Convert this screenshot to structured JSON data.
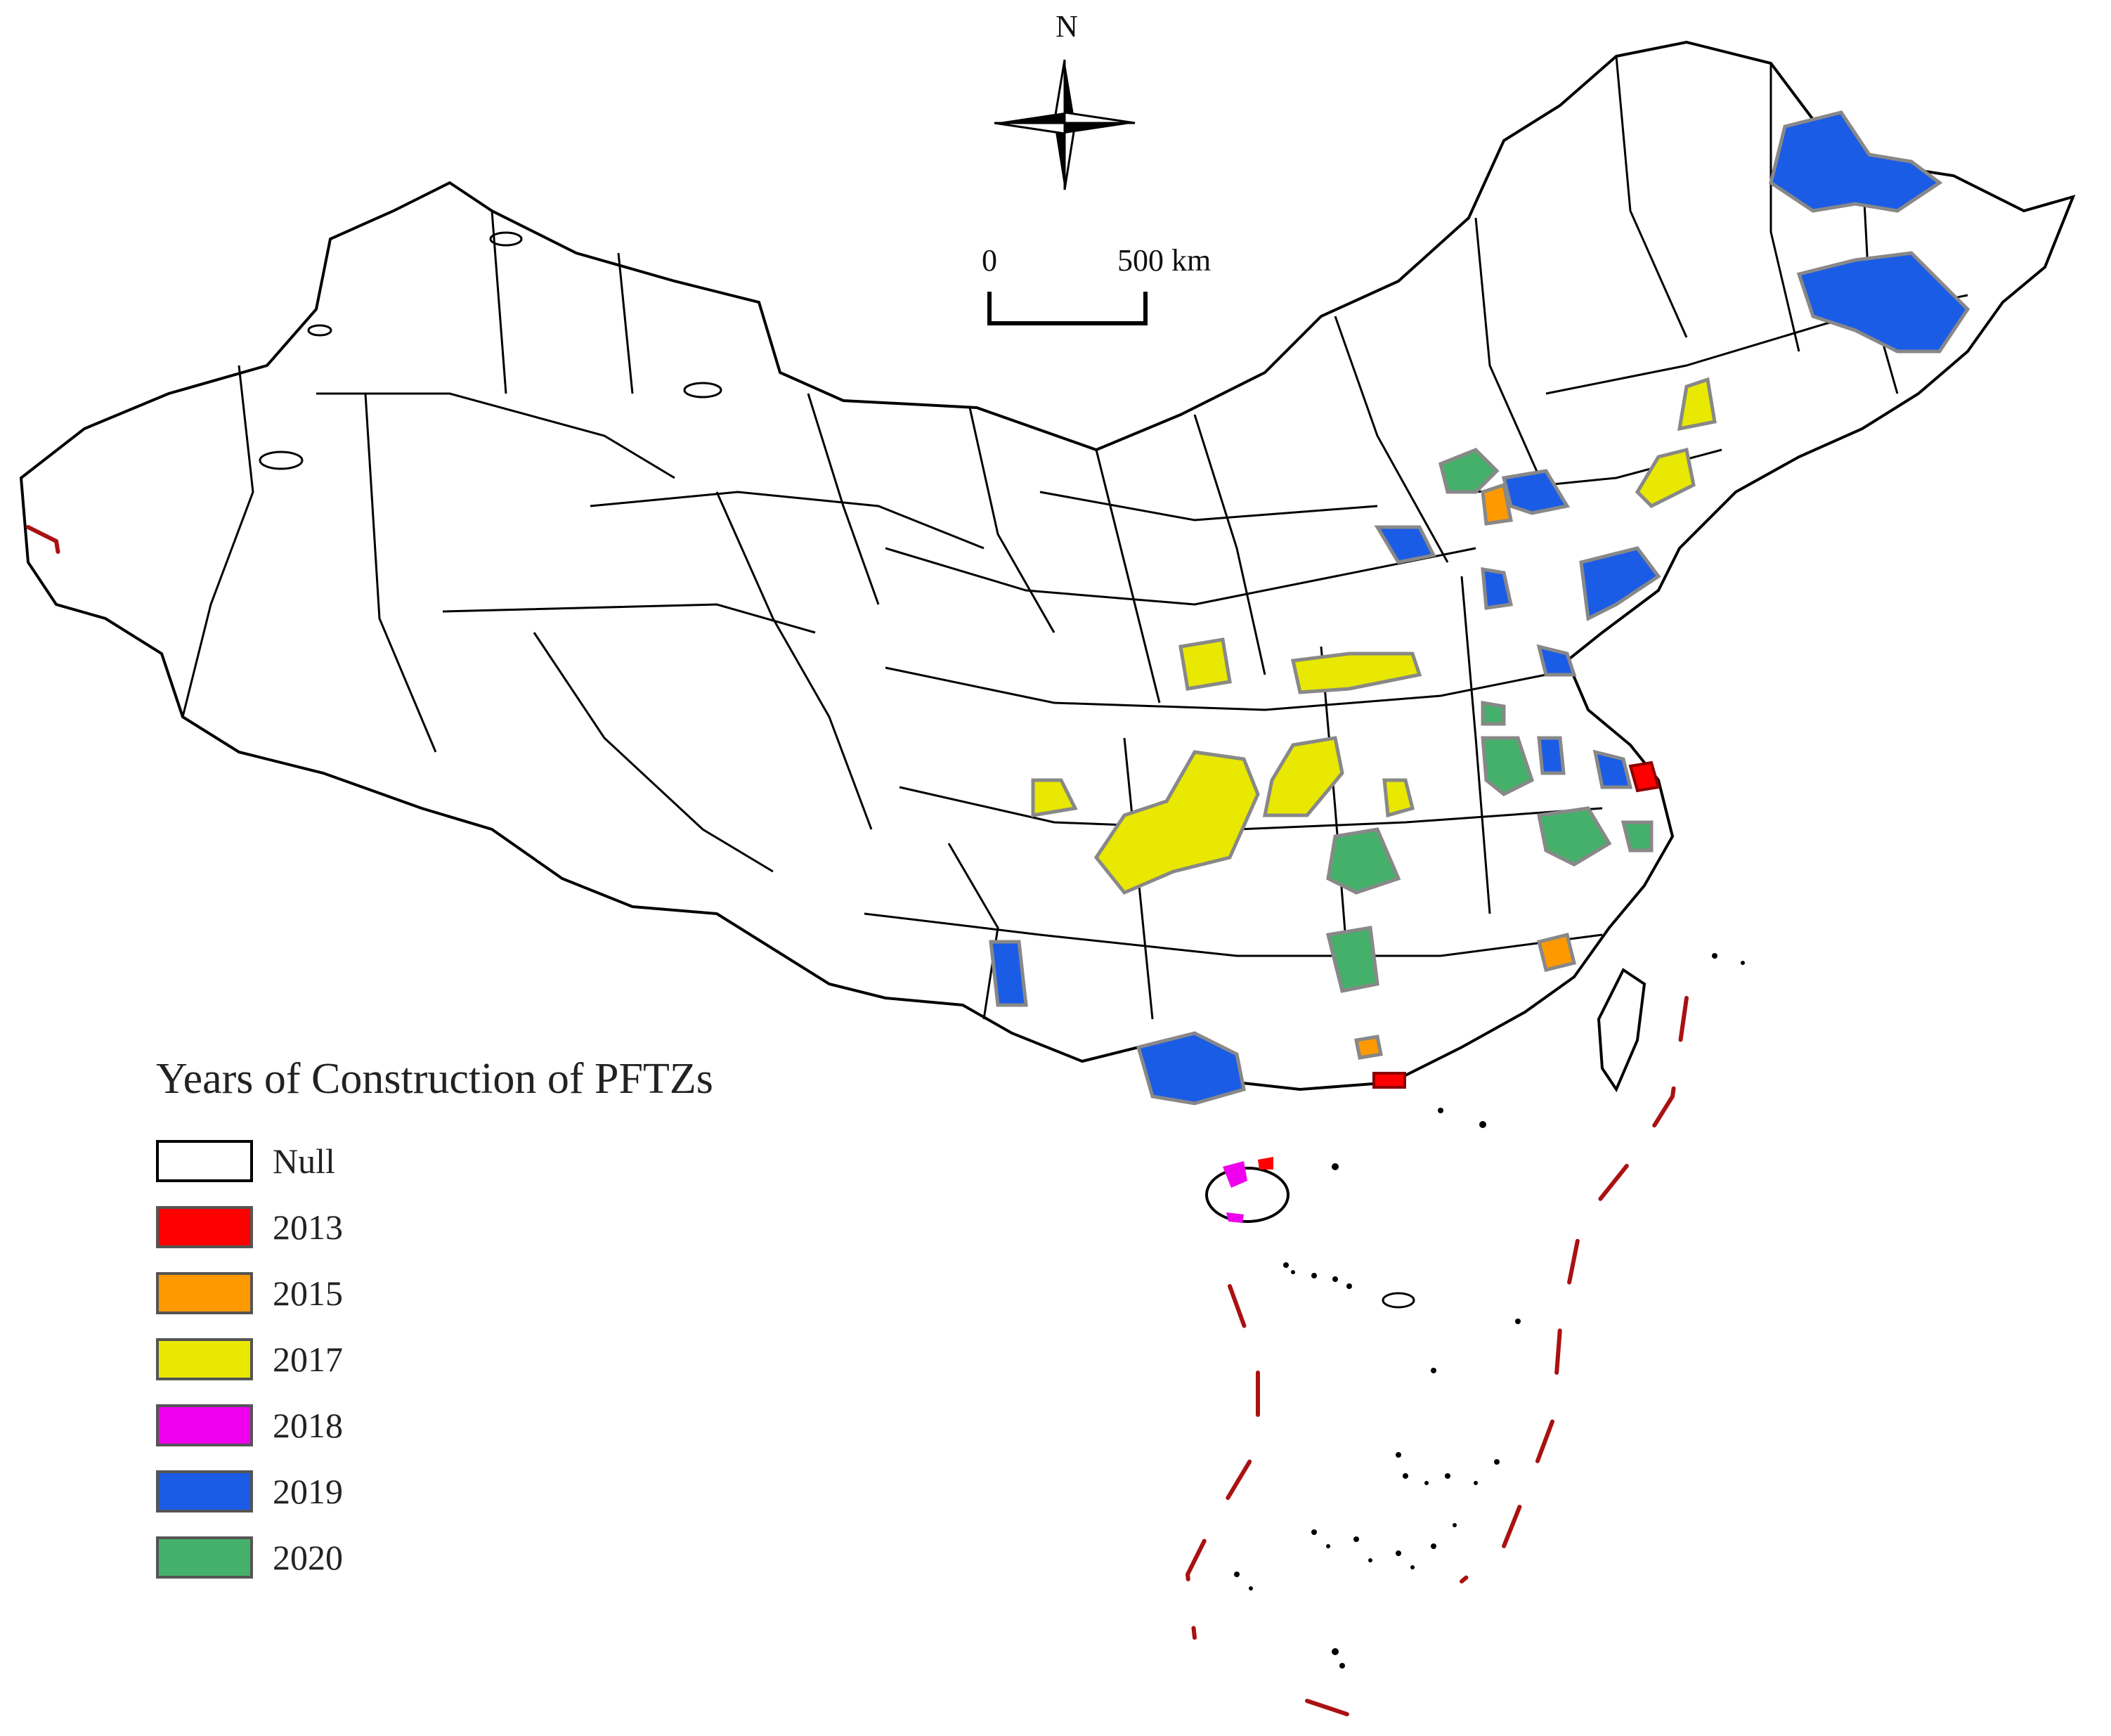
{
  "map": {
    "north_label": "N",
    "scale_zero": "0",
    "scale_distance": "500 km"
  },
  "legend": {
    "title": "Years of Construction of PFTZs",
    "items": [
      {
        "label": "Null",
        "color": "#ffffff"
      },
      {
        "label": "2013",
        "color": "#ff0000"
      },
      {
        "label": "2015",
        "color": "#ff9900"
      },
      {
        "label": "2017",
        "color": "#e8e800"
      },
      {
        "label": "2018",
        "color": "#ee00ee"
      },
      {
        "label": "2019",
        "color": "#1a5ce6"
      },
      {
        "label": "2020",
        "color": "#45b06a"
      }
    ]
  }
}
